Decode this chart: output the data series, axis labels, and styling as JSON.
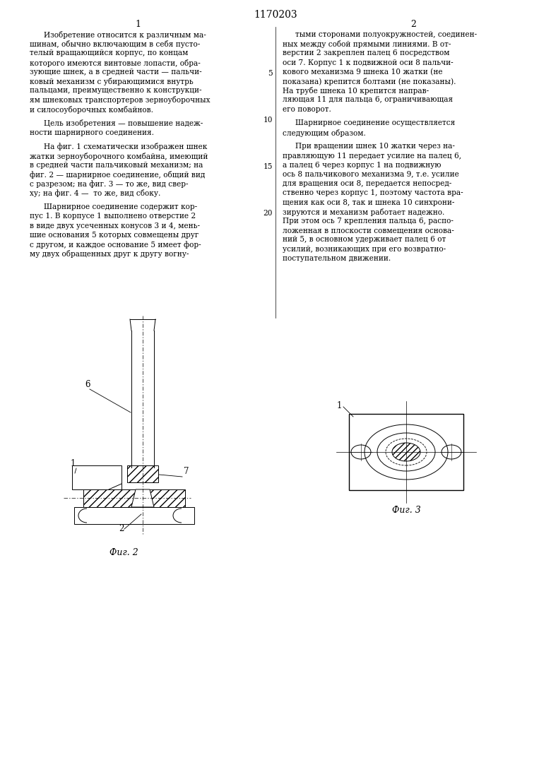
{
  "title": "1170203",
  "col1_header": "1",
  "col2_header": "2",
  "bg_color": "#ffffff",
  "text_color": "#000000",
  "line_color": "#000000",
  "fig2_label": "Фиг. 2",
  "fig3_label": "Фиг. 3",
  "col1_paragraphs": [
    [
      "Изобретение относится к различным ма-",
      "шинам, обычно включающим в себя пусто-",
      "телый вращающийся корпус, по концам",
      "которого имеются винтовые лопасти, обра-",
      "зующие шнек, а в средней части — пальчи-",
      "ковый механизм с убирающимися внутрь",
      "пальцами, преимущественно к конструкци-",
      "ям шнековых транспортеров зерноуборочных",
      "и силосоуборочных комбайнов."
    ],
    [
      "Цель изобретения — повышение надеж-",
      "ности шарнирного соединения."
    ],
    [
      "На фиг. 1 схематически изображен шнек",
      "жатки зерноуборочного комбайна, имеющий",
      "в средней части пальчиковый механизм; на",
      "фиг. 2 — шарнирное соединение, общий вид",
      "с разрезом; на фиг. 3 — то же, вид свер-",
      "ху; на фиг. 4 —  то же, вид сбоку."
    ],
    [
      "Шарнирное соединение содержит кор-",
      "пус 1. В корпусе 1 выполнено отверстие 2",
      "в виде двух усеченных конусов 3 и 4, мень-",
      "шие основания 5 которых совмещены друг",
      "с другом, и каждое основание 5 имеет фор-",
      "му двух обращенных друг к другу вогну-"
    ]
  ],
  "col2_paragraphs": [
    [
      "тыми сторонами полуокружностей, соединен-",
      "ных между собой прямыми линиями. В от-",
      "верстии 2 закреплен палец 6 посредством",
      "оси 7. Корпус 1 к подвижной оси 8 пальчи-",
      "кового механизма 9 шнека 10 жатки (не",
      "показана) крепится болтами (не показаны).",
      "На трубе шнека 10 крепится направ-",
      "ляющая 11 для пальца 6, ограничивающая",
      "его поворот."
    ],
    [
      "Шарнирное соединение осуществляется",
      "следующим образом."
    ],
    [
      "При вращении шнек 10 жатки через на-",
      "правляющую 11 передает усилие на палец 6,",
      "а палец 6 через корпус 1 на подвижную",
      "ось 8 пальчикового механизма 9, т.е. усилие",
      "для вращения оси 8, передается непосред-",
      "ственно через корпус 1, поэтому частота вра-",
      "щения как оси 8, так и шнека 10 синхрони-",
      "зируются и механизм работает надежно.",
      "При этом ось 7 крепления пальца 6, распо-",
      "ложенная в плоскости совмещения основа-",
      "ний 5, в основном удерживает палец 6 от",
      "усилий, возникающих при его возвратно-",
      "поступательном движении."
    ]
  ]
}
